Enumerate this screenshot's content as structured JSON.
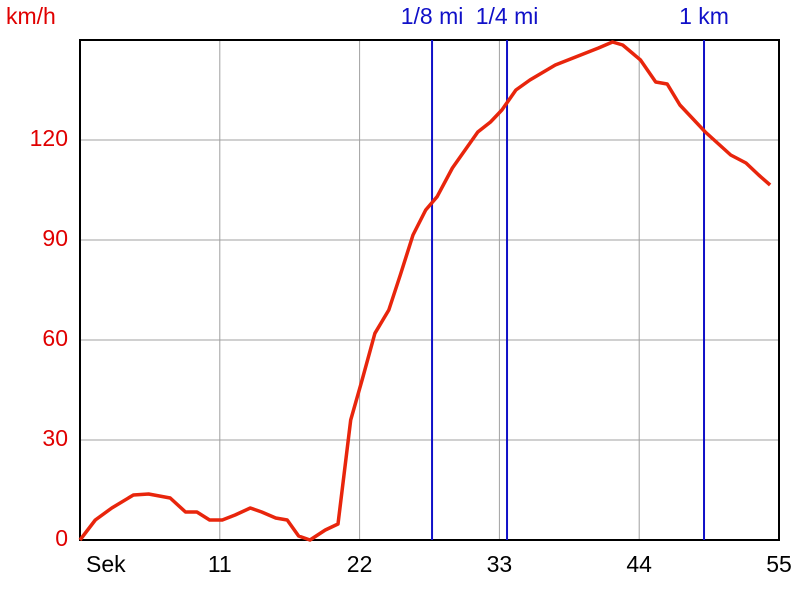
{
  "chart_data": {
    "type": "line",
    "ylabel": "km/h",
    "x": [
      0,
      1.2,
      2.5,
      4.2,
      5.4,
      7.1,
      8.3,
      9.2,
      10.2,
      11.2,
      12.2,
      13.4,
      14.3,
      15.4,
      16.3,
      17.2,
      18.1,
      19.3,
      20.3,
      21.3,
      22.2,
      23.2,
      24.3,
      25.2,
      26.2,
      27.2,
      28.1,
      29.3,
      30.3,
      31.3,
      32.3,
      33.2,
      34.3,
      35.4,
      37.4,
      39.4,
      40.8,
      41.9,
      42.7,
      44.1,
      45.3,
      46.2,
      47.2,
      49.2,
      51.2,
      52.4,
      53.4,
      54.3
    ],
    "values": [
      0,
      6,
      9.6,
      13.5,
      13.8,
      12.6,
      8.4,
      8.4,
      6,
      6,
      7.5,
      9.6,
      8.4,
      6.6,
      6,
      1.2,
      0,
      3,
      4.8,
      36,
      48,
      62,
      69,
      79.5,
      91.5,
      99,
      103,
      111.6,
      117,
      122.4,
      125.4,
      129,
      135,
      138,
      142.5,
      145.5,
      147.6,
      149.4,
      148.5,
      144,
      137.4,
      136.8,
      130.5,
      122.4,
      115.5,
      113.1,
      109.5,
      106.5
    ],
    "color": "#e8250c",
    "xlim": [
      0,
      55
    ],
    "ylim": [
      0,
      150
    ],
    "xticks": [
      {
        "value": 0,
        "label": "Sek"
      },
      11,
      22,
      33,
      44,
      55
    ],
    "yticks": [
      0,
      30,
      60,
      90,
      120
    ],
    "grid": true,
    "markers": [
      {
        "label": "1/8 mi",
        "x": 27.7
      },
      {
        "label": "1/4 mi",
        "x": 33.6
      },
      {
        "label": "1 km",
        "x": 49.1
      }
    ],
    "marker_color": "#1010c8"
  }
}
